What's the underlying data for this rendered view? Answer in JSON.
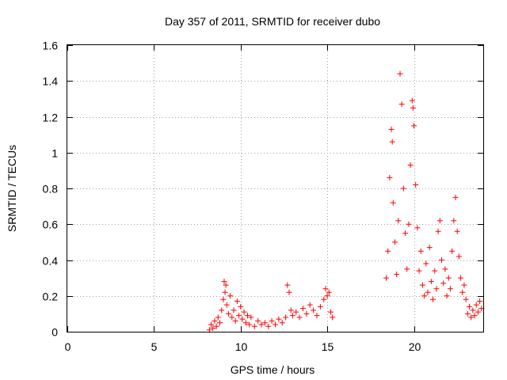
{
  "chart_data": {
    "type": "scatter",
    "title": "Day 357 of 2011, SRMTID for receiver dubo",
    "xlabel": "GPS time / hours",
    "ylabel": "SRMTID / TECUs",
    "xlim": [
      0,
      24
    ],
    "ylim": [
      0,
      1.6
    ],
    "xticks": [
      "0",
      "5",
      "10",
      "15",
      "20"
    ],
    "yticks": [
      "0",
      "0.2",
      "0.4",
      "0.6",
      "0.8",
      "1",
      "1.2",
      "1.4",
      "1.6"
    ],
    "grid": true,
    "marker": "+",
    "color": "#ff0000",
    "series": [
      {
        "name": "SRMTID",
        "points": [
          [
            8.2,
            0.01
          ],
          [
            8.3,
            0.04
          ],
          [
            8.4,
            0.02
          ],
          [
            8.5,
            0.06
          ],
          [
            8.6,
            0.03
          ],
          [
            8.7,
            0.08
          ],
          [
            8.8,
            0.05
          ],
          [
            8.9,
            0.12
          ],
          [
            9.0,
            0.18
          ],
          [
            9.05,
            0.28
          ],
          [
            9.1,
            0.22
          ],
          [
            9.15,
            0.26
          ],
          [
            9.2,
            0.15
          ],
          [
            9.3,
            0.1
          ],
          [
            9.4,
            0.2
          ],
          [
            9.5,
            0.08
          ],
          [
            9.6,
            0.12
          ],
          [
            9.7,
            0.06
          ],
          [
            9.8,
            0.17
          ],
          [
            9.9,
            0.09
          ],
          [
            10.0,
            0.14
          ],
          [
            10.1,
            0.07
          ],
          [
            10.2,
            0.11
          ],
          [
            10.3,
            0.05
          ],
          [
            10.4,
            0.09
          ],
          [
            10.5,
            0.04
          ],
          [
            10.6,
            0.08
          ],
          [
            10.8,
            0.03
          ],
          [
            11.0,
            0.06
          ],
          [
            11.2,
            0.04
          ],
          [
            11.4,
            0.05
          ],
          [
            11.6,
            0.03
          ],
          [
            11.8,
            0.06
          ],
          [
            12.0,
            0.04
          ],
          [
            12.2,
            0.07
          ],
          [
            12.4,
            0.05
          ],
          [
            12.6,
            0.08
          ],
          [
            12.7,
            0.26
          ],
          [
            12.8,
            0.22
          ],
          [
            12.9,
            0.12
          ],
          [
            13.0,
            0.09
          ],
          [
            13.2,
            0.11
          ],
          [
            13.4,
            0.08
          ],
          [
            13.6,
            0.13
          ],
          [
            13.8,
            0.1
          ],
          [
            14.0,
            0.15
          ],
          [
            14.2,
            0.12
          ],
          [
            14.4,
            0.09
          ],
          [
            14.6,
            0.14
          ],
          [
            14.8,
            0.18
          ],
          [
            14.9,
            0.24
          ],
          [
            15.0,
            0.2
          ],
          [
            15.1,
            0.22
          ],
          [
            15.2,
            0.11
          ],
          [
            15.3,
            0.08
          ],
          [
            18.4,
            0.3
          ],
          [
            18.5,
            0.45
          ],
          [
            18.6,
            0.86
          ],
          [
            18.7,
            1.13
          ],
          [
            18.75,
            1.06
          ],
          [
            18.8,
            0.72
          ],
          [
            18.9,
            0.5
          ],
          [
            19.0,
            0.32
          ],
          [
            19.1,
            0.62
          ],
          [
            19.2,
            1.44
          ],
          [
            19.3,
            1.27
          ],
          [
            19.4,
            0.8
          ],
          [
            19.5,
            0.55
          ],
          [
            19.6,
            0.35
          ],
          [
            19.7,
            0.6
          ],
          [
            19.8,
            0.93
          ],
          [
            19.9,
            1.29
          ],
          [
            19.95,
            1.25
          ],
          [
            20.0,
            1.15
          ],
          [
            20.1,
            0.82
          ],
          [
            20.2,
            0.58
          ],
          [
            20.3,
            0.34
          ],
          [
            20.4,
            0.45
          ],
          [
            20.5,
            0.26
          ],
          [
            20.6,
            0.2
          ],
          [
            20.7,
            0.38
          ],
          [
            20.8,
            0.22
          ],
          [
            20.9,
            0.47
          ],
          [
            21.0,
            0.28
          ],
          [
            21.1,
            0.18
          ],
          [
            21.2,
            0.34
          ],
          [
            21.3,
            0.24
          ],
          [
            21.4,
            0.56
          ],
          [
            21.5,
            0.62
          ],
          [
            21.6,
            0.4
          ],
          [
            21.7,
            0.27
          ],
          [
            21.8,
            0.35
          ],
          [
            21.9,
            0.2
          ],
          [
            22.0,
            0.3
          ],
          [
            22.1,
            0.24
          ],
          [
            22.2,
            0.45
          ],
          [
            22.3,
            0.62
          ],
          [
            22.4,
            0.75
          ],
          [
            22.5,
            0.56
          ],
          [
            22.6,
            0.42
          ],
          [
            22.7,
            0.3
          ],
          [
            22.8,
            0.22
          ],
          [
            22.9,
            0.26
          ],
          [
            23.0,
            0.18
          ],
          [
            23.1,
            0.1
          ],
          [
            23.2,
            0.14
          ],
          [
            23.3,
            0.08
          ],
          [
            23.4,
            0.12
          ],
          [
            23.5,
            0.09
          ],
          [
            23.6,
            0.15
          ],
          [
            23.7,
            0.11
          ],
          [
            23.8,
            0.17
          ],
          [
            23.9,
            0.13
          ]
        ]
      }
    ]
  }
}
